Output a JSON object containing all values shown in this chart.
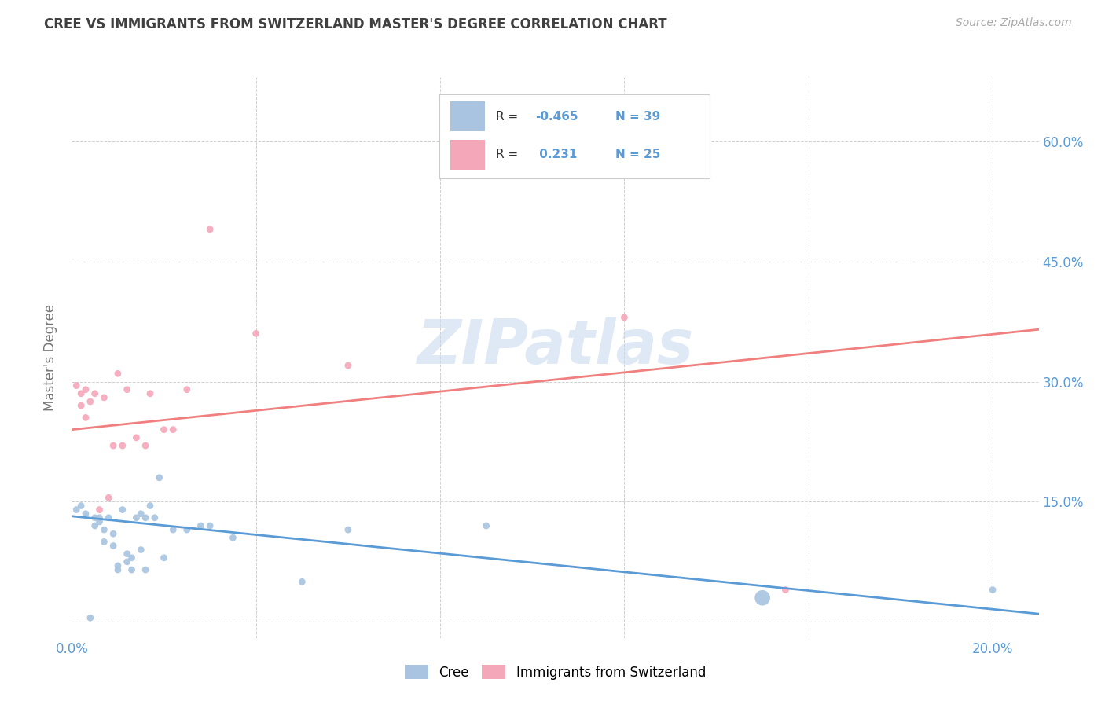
{
  "title": "CREE VS IMMIGRANTS FROM SWITZERLAND MASTER'S DEGREE CORRELATION CHART",
  "source": "Source: ZipAtlas.com",
  "ylabel": "Master's Degree",
  "watermark": "ZIPatlas",
  "blue_color": "#a8c4e0",
  "pink_color": "#f4a7b9",
  "blue_line_color": "#5b9bd5",
  "pink_line_color": "#f08080",
  "title_color": "#404040",
  "axis_label_color": "#5b9bd5",
  "xlim": [
    0.0,
    0.21
  ],
  "ylim": [
    -0.02,
    0.68
  ],
  "xtick_positions": [
    0.0,
    0.04,
    0.08,
    0.12,
    0.16,
    0.2
  ],
  "xtick_labels": [
    "0.0%",
    "",
    "",
    "",
    "",
    "20.0%"
  ],
  "ytick_positions": [
    0.0,
    0.15,
    0.3,
    0.45,
    0.6
  ],
  "ytick_right_labels": [
    "",
    "15.0%",
    "30.0%",
    "45.0%",
    "60.0%"
  ],
  "grid_color": "#d0d0d0",
  "cree_x": [
    0.001,
    0.002,
    0.003,
    0.004,
    0.005,
    0.005,
    0.006,
    0.006,
    0.007,
    0.007,
    0.008,
    0.009,
    0.009,
    0.01,
    0.01,
    0.011,
    0.012,
    0.012,
    0.013,
    0.013,
    0.014,
    0.015,
    0.015,
    0.016,
    0.016,
    0.017,
    0.018,
    0.019,
    0.02,
    0.022,
    0.025,
    0.028,
    0.03,
    0.035,
    0.05,
    0.06,
    0.09,
    0.15,
    0.2
  ],
  "cree_y": [
    0.14,
    0.145,
    0.135,
    0.005,
    0.13,
    0.12,
    0.125,
    0.13,
    0.115,
    0.1,
    0.13,
    0.095,
    0.11,
    0.065,
    0.07,
    0.14,
    0.075,
    0.085,
    0.08,
    0.065,
    0.13,
    0.135,
    0.09,
    0.065,
    0.13,
    0.145,
    0.13,
    0.18,
    0.08,
    0.115,
    0.115,
    0.12,
    0.12,
    0.105,
    0.05,
    0.115,
    0.12,
    0.03,
    0.04
  ],
  "cree_sizes": [
    40,
    40,
    40,
    40,
    40,
    40,
    40,
    40,
    40,
    40,
    40,
    40,
    40,
    40,
    40,
    40,
    40,
    40,
    40,
    40,
    40,
    40,
    40,
    40,
    40,
    40,
    40,
    40,
    40,
    40,
    40,
    40,
    40,
    40,
    40,
    40,
    40,
    200,
    40
  ],
  "swiss_x": [
    0.001,
    0.002,
    0.002,
    0.003,
    0.003,
    0.004,
    0.005,
    0.006,
    0.007,
    0.008,
    0.009,
    0.01,
    0.011,
    0.012,
    0.014,
    0.016,
    0.017,
    0.02,
    0.022,
    0.025,
    0.03,
    0.04,
    0.06,
    0.12,
    0.155
  ],
  "swiss_y": [
    0.295,
    0.27,
    0.285,
    0.29,
    0.255,
    0.275,
    0.285,
    0.14,
    0.28,
    0.155,
    0.22,
    0.31,
    0.22,
    0.29,
    0.23,
    0.22,
    0.285,
    0.24,
    0.24,
    0.29,
    0.49,
    0.36,
    0.32,
    0.38,
    0.04
  ],
  "swiss_sizes": [
    40,
    40,
    40,
    40,
    40,
    40,
    40,
    40,
    40,
    40,
    40,
    40,
    40,
    40,
    40,
    40,
    40,
    40,
    40,
    40,
    40,
    40,
    40,
    40,
    40
  ],
  "blue_trend_x": [
    0.0,
    0.21
  ],
  "blue_trend_y": [
    0.132,
    0.01
  ],
  "pink_trend_x": [
    0.0,
    0.21
  ],
  "pink_trend_y": [
    0.24,
    0.365
  ],
  "background_color": "#ffffff"
}
